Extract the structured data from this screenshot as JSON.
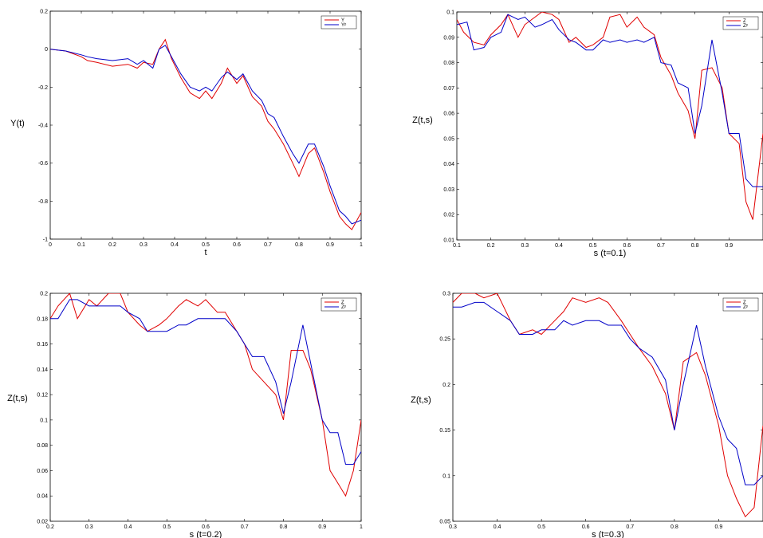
{
  "chart_data": [
    {
      "type": "line",
      "title": "",
      "xlabel": "t",
      "ylabel": "Y(t)",
      "xlim": [
        0,
        1
      ],
      "ylim": [
        -1,
        0.2
      ],
      "xticks": [
        0,
        0.1,
        0.2,
        0.3,
        0.4,
        0.5,
        0.6,
        0.7,
        0.8,
        0.9,
        1
      ],
      "xtick_labels": [
        "0",
        "0.1",
        "0.2",
        "0.3",
        "0.4",
        "0.5",
        "0.6",
        "0.7",
        "0.8",
        "0.9",
        "1"
      ],
      "yticks": [
        -1,
        -0.8,
        -0.6,
        -0.4,
        -0.2,
        0,
        0.2
      ],
      "ytick_labels": [
        "-1",
        "-0.8",
        "-0.6",
        "-0.4",
        "-0.2",
        "0",
        "0.2"
      ],
      "legend_position": "top-right",
      "grid": false,
      "series": [
        {
          "name": "Y",
          "color": "#e00000",
          "x": [
            0,
            0.05,
            0.1,
            0.12,
            0.15,
            0.2,
            0.25,
            0.28,
            0.3,
            0.33,
            0.35,
            0.37,
            0.39,
            0.42,
            0.45,
            0.48,
            0.5,
            0.52,
            0.55,
            0.57,
            0.6,
            0.62,
            0.65,
            0.68,
            0.7,
            0.72,
            0.75,
            0.78,
            0.8,
            0.83,
            0.85,
            0.88,
            0.9,
            0.93,
            0.95,
            0.97,
            1
          ],
          "y": [
            0,
            -0.01,
            -0.04,
            -0.06,
            -0.07,
            -0.09,
            -0.08,
            -0.1,
            -0.07,
            -0.08,
            0,
            0.05,
            -0.05,
            -0.15,
            -0.23,
            -0.26,
            -0.22,
            -0.26,
            -0.18,
            -0.1,
            -0.18,
            -0.14,
            -0.25,
            -0.3,
            -0.38,
            -0.42,
            -0.5,
            -0.6,
            -0.67,
            -0.55,
            -0.52,
            -0.65,
            -0.75,
            -0.88,
            -0.92,
            -0.95,
            -0.86
          ]
        },
        {
          "name": "Yᵖ",
          "color": "#0000c8",
          "x": [
            0,
            0.05,
            0.1,
            0.12,
            0.15,
            0.2,
            0.25,
            0.28,
            0.3,
            0.33,
            0.35,
            0.37,
            0.39,
            0.42,
            0.45,
            0.48,
            0.5,
            0.52,
            0.55,
            0.57,
            0.6,
            0.62,
            0.65,
            0.68,
            0.7,
            0.72,
            0.75,
            0.78,
            0.8,
            0.83,
            0.85,
            0.88,
            0.9,
            0.93,
            0.95,
            0.97,
            1
          ],
          "y": [
            0,
            -0.01,
            -0.03,
            -0.04,
            -0.05,
            -0.06,
            -0.05,
            -0.08,
            -0.06,
            -0.1,
            0,
            0.02,
            -0.04,
            -0.13,
            -0.2,
            -0.22,
            -0.2,
            -0.22,
            -0.15,
            -0.12,
            -0.16,
            -0.13,
            -0.22,
            -0.27,
            -0.34,
            -0.36,
            -0.46,
            -0.55,
            -0.6,
            -0.5,
            -0.5,
            -0.62,
            -0.72,
            -0.85,
            -0.88,
            -0.92,
            -0.9
          ]
        }
      ]
    },
    {
      "type": "line",
      "title": "",
      "xlabel": "s (t=0.1)",
      "ylabel": "Z(t,s)",
      "xlim": [
        0.1,
        1
      ],
      "ylim": [
        0.01,
        0.1
      ],
      "xticks": [
        0.1,
        0.2,
        0.3,
        0.4,
        0.5,
        0.6,
        0.7,
        0.8,
        0.9
      ],
      "xtick_labels": [
        "0.1",
        "0.2",
        "0.3",
        "0.4",
        "0.5",
        "0.6",
        "0.7",
        "0.8",
        "0.9"
      ],
      "yticks": [
        0.01,
        0.02,
        0.03,
        0.04,
        0.05,
        0.06,
        0.07,
        0.08,
        0.09,
        0.1
      ],
      "ytick_labels": [
        "0.01",
        "0.02",
        "0.03",
        "0.04",
        "0.05",
        "0.06",
        "0.07",
        "0.08",
        "0.09",
        "0.1"
      ],
      "legend_position": "top-right",
      "grid": false,
      "series": [
        {
          "name": "Z",
          "color": "#e00000",
          "x": [
            0.1,
            0.12,
            0.15,
            0.18,
            0.2,
            0.23,
            0.25,
            0.28,
            0.3,
            0.33,
            0.35,
            0.38,
            0.4,
            0.43,
            0.45,
            0.48,
            0.5,
            0.53,
            0.55,
            0.58,
            0.6,
            0.63,
            0.65,
            0.68,
            0.7,
            0.73,
            0.75,
            0.78,
            0.8,
            0.82,
            0.85,
            0.88,
            0.9,
            0.93,
            0.95,
            0.97,
            1
          ],
          "y": [
            0.097,
            0.092,
            0.088,
            0.087,
            0.091,
            0.095,
            0.099,
            0.09,
            0.095,
            0.098,
            0.1,
            0.099,
            0.097,
            0.088,
            0.09,
            0.086,
            0.087,
            0.09,
            0.098,
            0.099,
            0.094,
            0.098,
            0.094,
            0.091,
            0.082,
            0.075,
            0.068,
            0.061,
            0.05,
            0.077,
            0.078,
            0.07,
            0.052,
            0.048,
            0.025,
            0.018,
            0.052
          ]
        },
        {
          "name": "Zᵖ",
          "color": "#0000c8",
          "x": [
            0.1,
            0.13,
            0.15,
            0.18,
            0.2,
            0.23,
            0.25,
            0.28,
            0.3,
            0.33,
            0.35,
            0.38,
            0.4,
            0.43,
            0.45,
            0.48,
            0.5,
            0.53,
            0.55,
            0.58,
            0.6,
            0.63,
            0.65,
            0.68,
            0.7,
            0.73,
            0.75,
            0.78,
            0.8,
            0.82,
            0.85,
            0.88,
            0.9,
            0.93,
            0.95,
            0.97,
            1
          ],
          "y": [
            0.095,
            0.096,
            0.085,
            0.086,
            0.09,
            0.092,
            0.099,
            0.097,
            0.098,
            0.094,
            0.095,
            0.097,
            0.093,
            0.089,
            0.088,
            0.085,
            0.085,
            0.089,
            0.088,
            0.089,
            0.088,
            0.089,
            0.088,
            0.09,
            0.08,
            0.079,
            0.072,
            0.07,
            0.052,
            0.063,
            0.089,
            0.068,
            0.052,
            0.052,
            0.034,
            0.031,
            0.031
          ]
        }
      ]
    },
    {
      "type": "line",
      "title": "",
      "xlabel": "s (t=0.2)",
      "ylabel": "Z(t,s)",
      "xlim": [
        0.2,
        1
      ],
      "ylim": [
        0.02,
        0.2
      ],
      "xticks": [
        0.2,
        0.3,
        0.4,
        0.5,
        0.6,
        0.7,
        0.8,
        0.9,
        1
      ],
      "xtick_labels": [
        "0.2",
        "0.3",
        "0.4",
        "0.5",
        "0.6",
        "0.7",
        "0.8",
        "0.9",
        "1"
      ],
      "yticks": [
        0.02,
        0.04,
        0.06,
        0.08,
        0.1,
        0.12,
        0.14,
        0.16,
        0.18,
        0.2
      ],
      "ytick_labels": [
        "0.02",
        "0.04",
        "0.06",
        "0.08",
        "0.1",
        "0.12",
        "0.14",
        "0.16",
        "0.18",
        "0.2"
      ],
      "legend_position": "top-right",
      "grid": false,
      "series": [
        {
          "name": "Z",
          "color": "#e00000",
          "x": [
            0.2,
            0.22,
            0.25,
            0.27,
            0.3,
            0.32,
            0.35,
            0.38,
            0.4,
            0.43,
            0.45,
            0.48,
            0.5,
            0.53,
            0.55,
            0.58,
            0.6,
            0.63,
            0.65,
            0.68,
            0.7,
            0.72,
            0.75,
            0.78,
            0.8,
            0.82,
            0.85,
            0.87,
            0.9,
            0.92,
            0.94,
            0.96,
            0.98,
            1
          ],
          "y": [
            0.18,
            0.19,
            0.2,
            0.18,
            0.195,
            0.19,
            0.2,
            0.2,
            0.185,
            0.175,
            0.17,
            0.175,
            0.18,
            0.19,
            0.195,
            0.19,
            0.195,
            0.185,
            0.185,
            0.17,
            0.16,
            0.14,
            0.13,
            0.12,
            0.1,
            0.155,
            0.155,
            0.14,
            0.1,
            0.06,
            0.05,
            0.04,
            0.06,
            0.1
          ]
        },
        {
          "name": "Zᵖ",
          "color": "#0000c8",
          "x": [
            0.2,
            0.22,
            0.25,
            0.27,
            0.3,
            0.32,
            0.35,
            0.38,
            0.4,
            0.43,
            0.45,
            0.48,
            0.5,
            0.53,
            0.55,
            0.58,
            0.6,
            0.63,
            0.65,
            0.68,
            0.7,
            0.72,
            0.75,
            0.78,
            0.8,
            0.82,
            0.85,
            0.87,
            0.9,
            0.92,
            0.94,
            0.96,
            0.98,
            1
          ],
          "y": [
            0.18,
            0.18,
            0.195,
            0.195,
            0.19,
            0.19,
            0.19,
            0.19,
            0.185,
            0.18,
            0.17,
            0.17,
            0.17,
            0.175,
            0.175,
            0.18,
            0.18,
            0.18,
            0.18,
            0.17,
            0.16,
            0.15,
            0.15,
            0.13,
            0.105,
            0.13,
            0.175,
            0.145,
            0.1,
            0.09,
            0.09,
            0.065,
            0.065,
            0.075
          ]
        }
      ]
    },
    {
      "type": "line",
      "title": "",
      "xlabel": "s (t=0.3)",
      "ylabel": "Z(t,s)",
      "xlim": [
        0.3,
        1
      ],
      "ylim": [
        0.05,
        0.3
      ],
      "xticks": [
        0.3,
        0.4,
        0.5,
        0.6,
        0.7,
        0.8,
        0.9
      ],
      "xtick_labels": [
        "0.3",
        "0.4",
        "0.5",
        "0.6",
        "0.7",
        "0.8",
        "0.9"
      ],
      "yticks": [
        0.05,
        0.1,
        0.15,
        0.2,
        0.25,
        0.3
      ],
      "ytick_labels": [
        "0.05",
        "0.1",
        "0.15",
        "0.2",
        "0.25",
        "0.3"
      ],
      "legend_position": "top-right",
      "grid": false,
      "series": [
        {
          "name": "Z",
          "color": "#e00000",
          "x": [
            0.3,
            0.32,
            0.35,
            0.37,
            0.4,
            0.43,
            0.45,
            0.48,
            0.5,
            0.53,
            0.55,
            0.57,
            0.6,
            0.63,
            0.65,
            0.68,
            0.7,
            0.72,
            0.75,
            0.78,
            0.8,
            0.82,
            0.85,
            0.87,
            0.9,
            0.92,
            0.94,
            0.96,
            0.98,
            1
          ],
          "y": [
            0.29,
            0.3,
            0.3,
            0.295,
            0.3,
            0.27,
            0.255,
            0.26,
            0.255,
            0.27,
            0.28,
            0.295,
            0.29,
            0.295,
            0.29,
            0.27,
            0.255,
            0.24,
            0.22,
            0.19,
            0.15,
            0.225,
            0.235,
            0.21,
            0.155,
            0.1,
            0.075,
            0.055,
            0.065,
            0.155
          ]
        },
        {
          "name": "Zᵖ",
          "color": "#0000c8",
          "x": [
            0.3,
            0.32,
            0.35,
            0.37,
            0.4,
            0.43,
            0.45,
            0.48,
            0.5,
            0.53,
            0.55,
            0.57,
            0.6,
            0.63,
            0.65,
            0.68,
            0.7,
            0.72,
            0.75,
            0.78,
            0.8,
            0.82,
            0.85,
            0.87,
            0.9,
            0.92,
            0.94,
            0.96,
            0.98,
            1
          ],
          "y": [
            0.285,
            0.285,
            0.29,
            0.29,
            0.28,
            0.27,
            0.255,
            0.255,
            0.26,
            0.26,
            0.27,
            0.265,
            0.27,
            0.27,
            0.265,
            0.265,
            0.25,
            0.24,
            0.23,
            0.205,
            0.15,
            0.2,
            0.265,
            0.22,
            0.165,
            0.14,
            0.13,
            0.09,
            0.09,
            0.1
          ]
        }
      ]
    }
  ]
}
